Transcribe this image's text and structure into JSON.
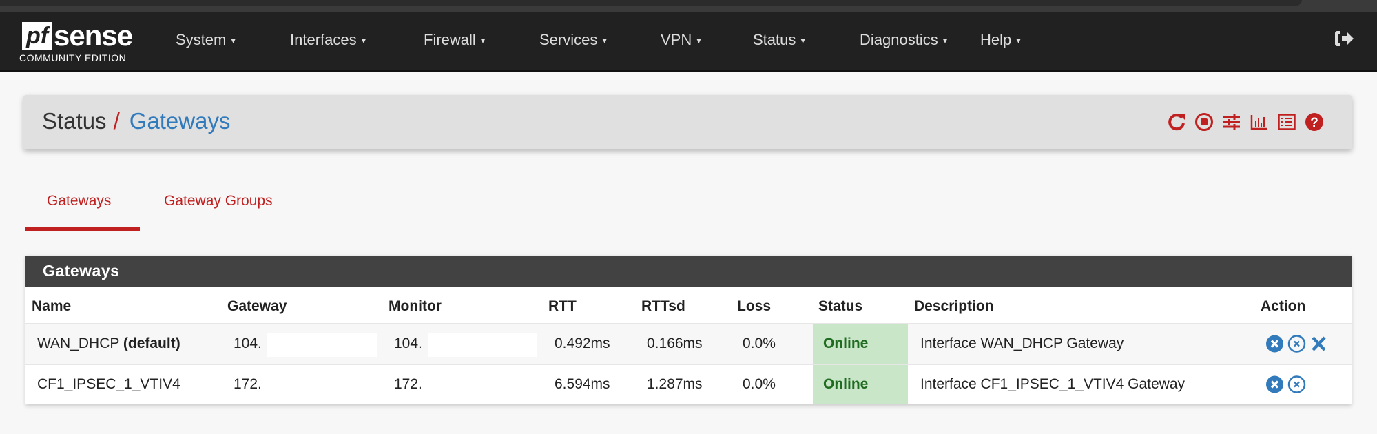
{
  "navbar": {
    "logo_text": "pfsense",
    "logo_pf": "pf",
    "logo_sense": "sense",
    "edition": "COMMUNITY EDITION",
    "items": [
      {
        "label": "System"
      },
      {
        "label": "Interfaces"
      },
      {
        "label": "Firewall"
      },
      {
        "label": "Services"
      },
      {
        "label": "VPN"
      },
      {
        "label": "Status"
      },
      {
        "label": "Diagnostics"
      },
      {
        "label": "Help"
      }
    ],
    "caret": "▾",
    "logout_icon": "sign-out-icon"
  },
  "breadcrumb": {
    "parent": "Status",
    "separator": "/",
    "current": "Gateways"
  },
  "toolbar_icons": [
    "reload-icon",
    "stop-circle-icon",
    "sliders-icon",
    "bar-chart-icon",
    "list-alt-icon",
    "question-circle-icon"
  ],
  "tabs": [
    {
      "label": "Gateways",
      "active": true
    },
    {
      "label": "Gateway Groups",
      "active": false
    }
  ],
  "panel": {
    "title": "Gateways",
    "columns": [
      "Name",
      "Gateway",
      "Monitor",
      "RTT",
      "RTTsd",
      "Loss",
      "Status",
      "Description",
      "Action"
    ],
    "rows": [
      {
        "name": "WAN_DHCP",
        "name_suffix": "(default)",
        "gateway": "104.",
        "monitor": "104.",
        "rtt": "0.492ms",
        "rttsd": "0.166ms",
        "loss": "0.0%",
        "status": "Online",
        "description": "Interface WAN_DHCP Gateway",
        "actions": [
          "mark-down-icon",
          "reset-icon",
          "delete-icon"
        ]
      },
      {
        "name": "CF1_IPSEC_1_VTIV4",
        "name_suffix": "",
        "gateway": "172.",
        "monitor": "172.",
        "rtt": "6.594ms",
        "rttsd": "1.287ms",
        "loss": "0.0%",
        "status": "Online",
        "description": "Interface CF1_IPSEC_1_VTIV4 Gateway",
        "actions": [
          "mark-down-icon",
          "reset-icon"
        ]
      }
    ]
  },
  "colors": {
    "accent_red": "#c0201f",
    "link_blue": "#317abb",
    "online_bg": "#c9e6c9",
    "online_text": "#1f6b1f",
    "navbar": "#212121",
    "panel_heading": "#424242"
  }
}
